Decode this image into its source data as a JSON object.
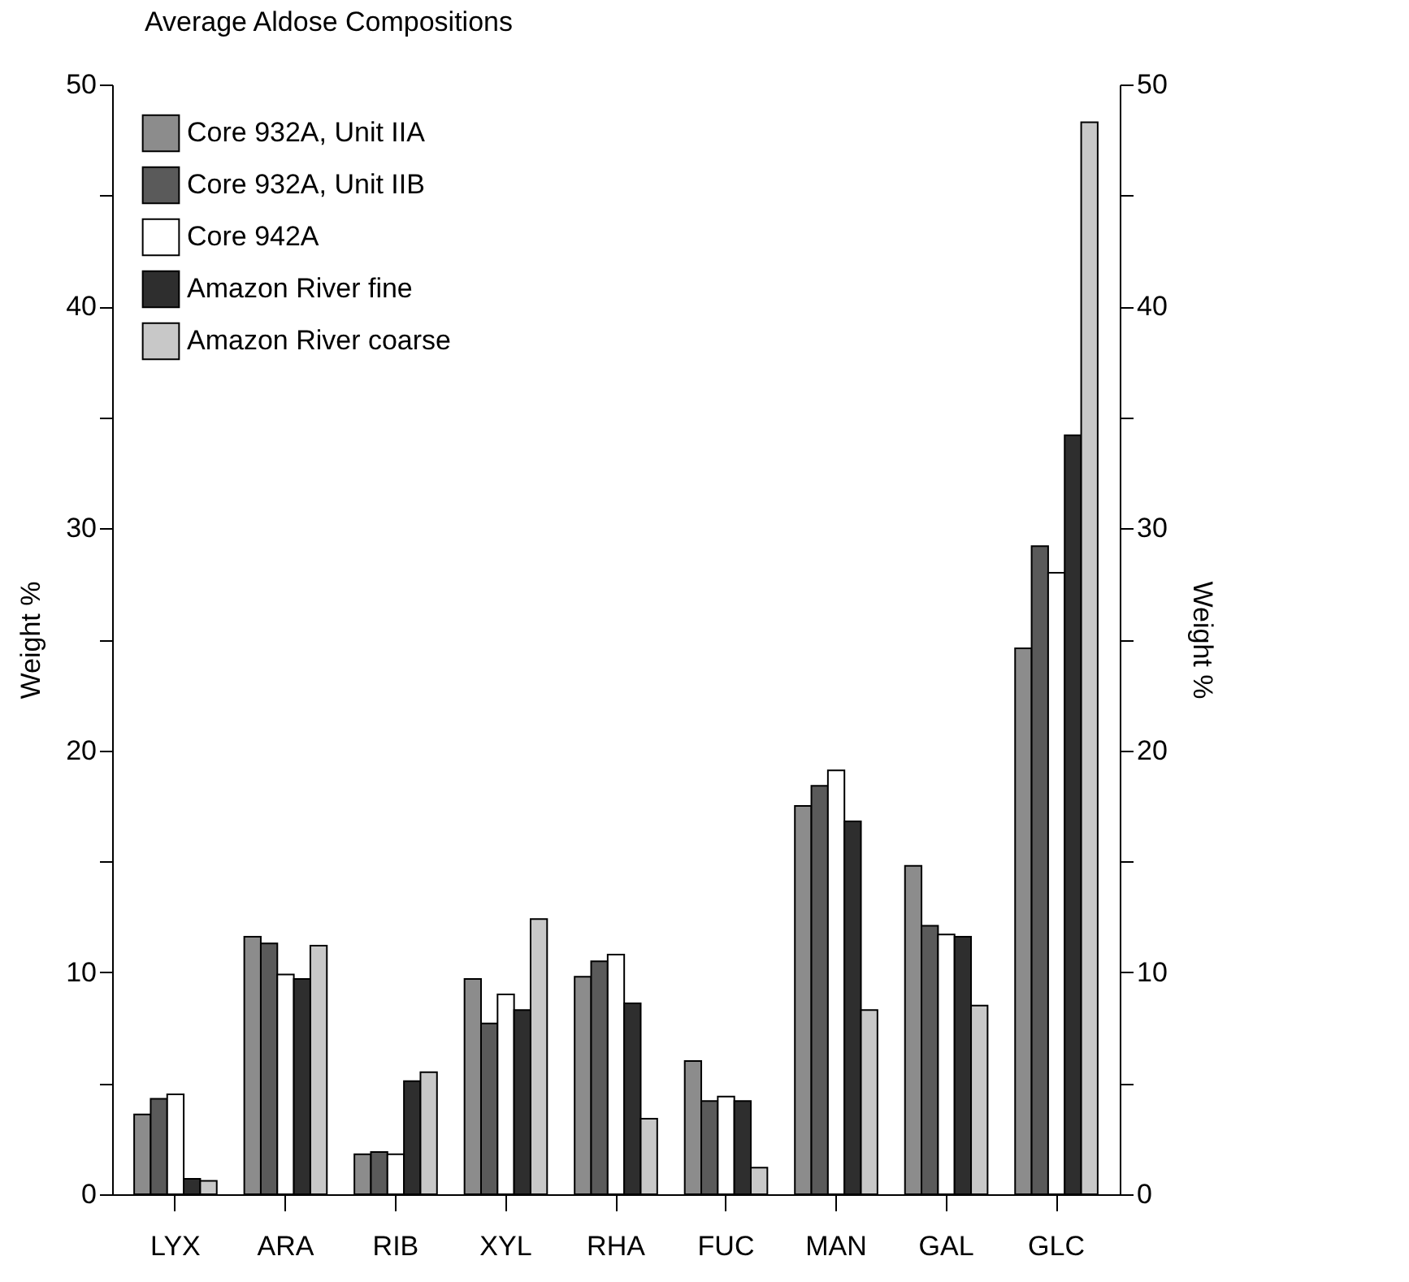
{
  "chart_data": {
    "type": "bar",
    "title": "Average Aldose Compositions",
    "ylabel": "Weight %",
    "y2label": "Weight %",
    "categories": [
      "LYX",
      "ARA",
      "RIB",
      "XYL",
      "RHA",
      "FUC",
      "MAN",
      "GAL",
      "GLC"
    ],
    "series": [
      {
        "name": "Core 932A, Unit IIA",
        "color": "#8c8c8c",
        "values": [
          3.6,
          11.6,
          1.8,
          9.7,
          9.8,
          6.0,
          17.5,
          14.8,
          24.6
        ]
      },
      {
        "name": "Core 932A, Unit IIB",
        "color": "#5a5a5a",
        "values": [
          4.3,
          11.3,
          1.9,
          7.7,
          10.5,
          4.2,
          18.4,
          12.1,
          29.2
        ]
      },
      {
        "name": "Core 942A",
        "color": "#ffffff",
        "values": [
          4.5,
          9.9,
          1.8,
          9.0,
          10.8,
          4.4,
          19.1,
          11.7,
          28.0
        ]
      },
      {
        "name": "Amazon River fine",
        "color": "#2e2e2e",
        "values": [
          0.7,
          9.7,
          5.1,
          8.3,
          8.6,
          4.2,
          16.8,
          11.6,
          34.2
        ]
      },
      {
        "name": "Amazon River coarse",
        "color": "#c8c8c8",
        "values": [
          0.6,
          11.2,
          5.5,
          12.4,
          3.4,
          1.2,
          8.3,
          8.5,
          48.3
        ]
      }
    ],
    "ylim": [
      0,
      50
    ],
    "yticks": [
      0,
      {
        "value": 5,
        "label": null
      },
      10,
      {
        "value": 15,
        "label": null
      },
      20,
      {
        "value": 25,
        "label": null
      },
      30,
      {
        "value": 35,
        "label": null
      },
      40,
      {
        "value": 45,
        "label": null
      },
      50
    ],
    "y2lim": [
      0,
      50
    ],
    "y2ticks": [
      0,
      {
        "value": 5,
        "label": null
      },
      10,
      {
        "value": 15,
        "label": null
      },
      20,
      {
        "value": 25,
        "label": null
      },
      30,
      {
        "value": 35,
        "label": null
      },
      40,
      {
        "value": 45,
        "label": null
      },
      50
    ],
    "legend": "top left"
  }
}
